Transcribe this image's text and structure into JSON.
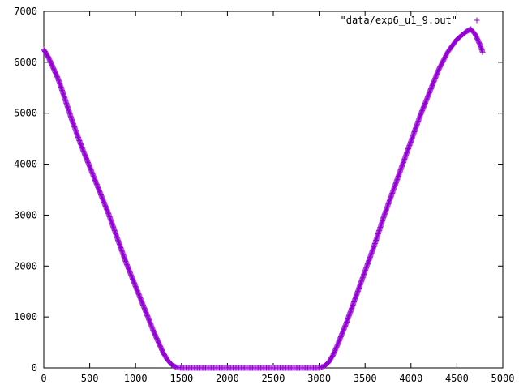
{
  "chart_data": {
    "type": "scatter",
    "title": "",
    "xlabel": "",
    "ylabel": "",
    "xlim": [
      0,
      5000
    ],
    "ylim": [
      0,
      7000
    ],
    "xticks": [
      0,
      500,
      1000,
      1500,
      2000,
      2500,
      3000,
      3500,
      4000,
      4500,
      5000
    ],
    "yticks": [
      0,
      1000,
      2000,
      3000,
      4000,
      5000,
      6000,
      7000
    ],
    "grid": false,
    "legend_position": "top-right",
    "series": [
      {
        "name": "\"data/exp6_u1_9.out\"",
        "color": "#9400d3",
        "marker": "plus",
        "points": [
          [
            0,
            6250
          ],
          [
            50,
            6100
          ],
          [
            100,
            5900
          ],
          [
            150,
            5700
          ],
          [
            200,
            5450
          ],
          [
            300,
            4900
          ],
          [
            400,
            4400
          ],
          [
            500,
            3950
          ],
          [
            600,
            3500
          ],
          [
            700,
            3050
          ],
          [
            800,
            2550
          ],
          [
            900,
            2050
          ],
          [
            1000,
            1600
          ],
          [
            1100,
            1150
          ],
          [
            1200,
            700
          ],
          [
            1300,
            300
          ],
          [
            1350,
            150
          ],
          [
            1400,
            50
          ],
          [
            1450,
            10
          ],
          [
            1500,
            0
          ],
          [
            1600,
            0
          ],
          [
            1800,
            0
          ],
          [
            2000,
            0
          ],
          [
            2200,
            0
          ],
          [
            2400,
            0
          ],
          [
            2600,
            0
          ],
          [
            2800,
            0
          ],
          [
            3000,
            0
          ],
          [
            3050,
            30
          ],
          [
            3100,
            100
          ],
          [
            3150,
            250
          ],
          [
            3200,
            450
          ],
          [
            3300,
            900
          ],
          [
            3400,
            1400
          ],
          [
            3500,
            1900
          ],
          [
            3600,
            2400
          ],
          [
            3700,
            2950
          ],
          [
            3800,
            3450
          ],
          [
            3900,
            3950
          ],
          [
            4000,
            4450
          ],
          [
            4100,
            4950
          ],
          [
            4200,
            5400
          ],
          [
            4300,
            5850
          ],
          [
            4400,
            6200
          ],
          [
            4500,
            6450
          ],
          [
            4600,
            6600
          ],
          [
            4650,
            6650
          ],
          [
            4700,
            6550
          ],
          [
            4750,
            6350
          ],
          [
            4780,
            6200
          ]
        ]
      }
    ]
  }
}
